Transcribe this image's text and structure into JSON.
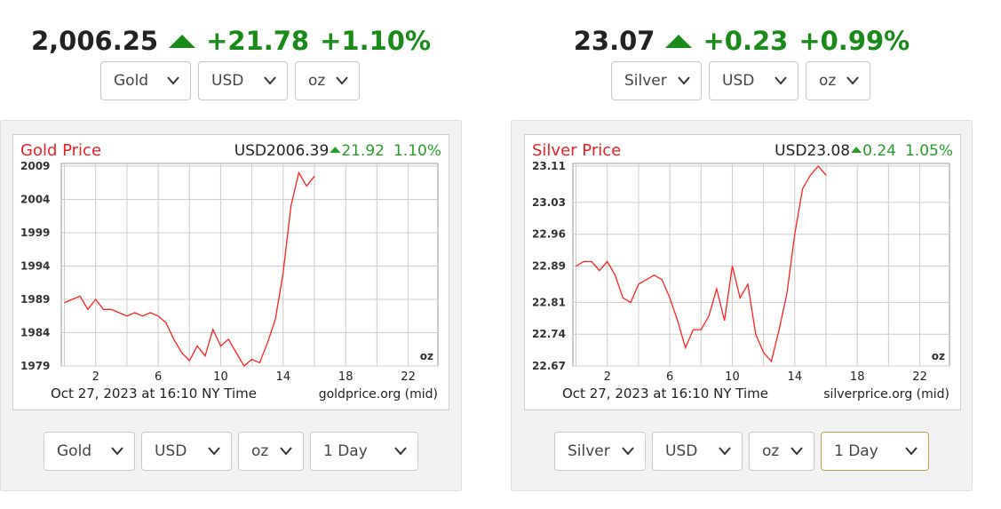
{
  "widgets": [
    {
      "price": "2,006.25",
      "change": "+21.78",
      "change_pct": "+1.10%",
      "selects": [
        "Gold",
        "USD",
        "oz"
      ],
      "bottom_selects": [
        "Gold",
        "USD",
        "oz",
        "1 Day"
      ]
    },
    {
      "price": "23.07",
      "change": "+0.23",
      "change_pct": "+0.99%",
      "selects": [
        "Silver",
        "USD",
        "oz"
      ],
      "bottom_selects": [
        "Silver",
        "USD",
        "oz",
        "1 Day"
      ]
    }
  ],
  "chart_data": [
    {
      "type": "line",
      "title": "Gold Price",
      "header_price": "USD2006.39",
      "header_change": "21.92",
      "header_pct": "1.10%",
      "unit_label": "oz",
      "footer_left": "Oct 27, 2023 at 16:10 NY Time",
      "footer_right": "goldprice.org (mid)",
      "title_color": "#e8202a",
      "color": "#ff2020",
      "grid": true,
      "x": [
        0,
        0.5,
        1,
        1.5,
        2,
        2.5,
        3,
        3.5,
        4,
        4.5,
        5,
        5.5,
        6,
        6.5,
        7,
        7.5,
        8,
        8.5,
        9,
        9.5,
        10,
        10.5,
        11,
        11.5,
        12,
        12.5,
        13,
        13.5,
        14,
        14.5,
        15,
        15.5,
        16
      ],
      "values": [
        1988.5,
        1989,
        1989.5,
        1987.5,
        1989,
        1987.5,
        1987.5,
        1987,
        1986.5,
        1987,
        1986.5,
        1987,
        1986.5,
        1985.5,
        1983,
        1981,
        1979.8,
        1982,
        1980.5,
        1984.5,
        1982,
        1983,
        1981,
        1979,
        1980,
        1979.5,
        1982.5,
        1986,
        1993,
        2003,
        2008,
        2006,
        2007.5
      ],
      "xlim": [
        -0.2,
        23.9
      ],
      "xticks": [
        2,
        6,
        10,
        14,
        18,
        22
      ],
      "xminorticks": [
        0,
        4,
        8,
        12,
        16,
        20
      ],
      "ylim": [
        1979,
        2009
      ],
      "yticks": [
        1979,
        1984,
        1989,
        1994,
        1999,
        2004,
        2009
      ]
    },
    {
      "type": "line",
      "title": "Silver Price",
      "header_price": "USD23.08",
      "header_change": "0.24",
      "header_pct": "1.05%",
      "unit_label": "oz",
      "footer_left": "Oct 27, 2023 at 16:10 NY Time",
      "footer_right": "silverprice.org (mid)",
      "title_color": "#e8202a",
      "color": "#ff2020",
      "grid": true,
      "x": [
        0,
        0.5,
        1,
        1.5,
        2,
        2.5,
        3,
        3.5,
        4,
        4.5,
        5,
        5.5,
        6,
        6.5,
        7,
        7.5,
        8,
        8.5,
        9,
        9.5,
        10,
        10.5,
        11,
        11.5,
        12,
        12.5,
        13,
        13.5,
        14,
        14.5,
        15,
        15.5,
        16
      ],
      "values": [
        22.89,
        22.9,
        22.9,
        22.88,
        22.9,
        22.87,
        22.82,
        22.81,
        22.85,
        22.86,
        22.87,
        22.86,
        22.82,
        22.77,
        22.71,
        22.75,
        22.75,
        22.78,
        22.84,
        22.77,
        22.89,
        22.82,
        22.85,
        22.74,
        22.7,
        22.68,
        22.75,
        22.83,
        22.96,
        23.06,
        23.09,
        23.11,
        23.09
      ],
      "xlim": [
        -0.2,
        23.9
      ],
      "xticks": [
        2,
        6,
        10,
        14,
        18,
        22
      ],
      "xminorticks": [
        0,
        4,
        8,
        12,
        16,
        20
      ],
      "ylim": [
        22.67,
        23.11
      ],
      "yticks": [
        22.67,
        22.74,
        22.81,
        22.89,
        22.96,
        23.03,
        23.11
      ]
    }
  ]
}
